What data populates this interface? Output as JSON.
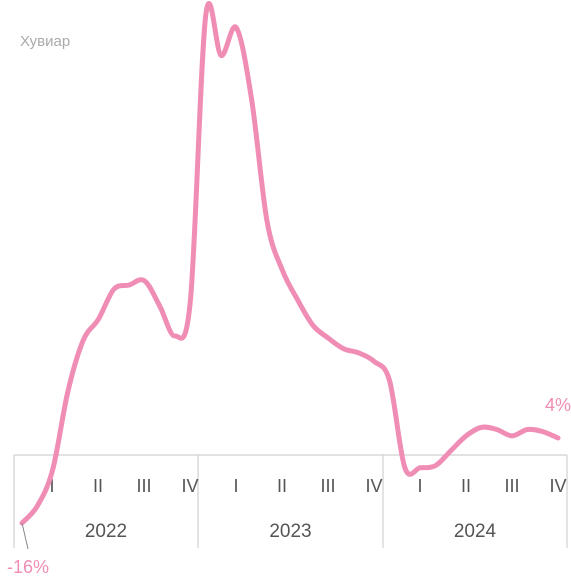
{
  "chart_data": {
    "type": "line",
    "y_label": "Хувиар",
    "series": [
      {
        "color": "#f08db5",
        "values": [
          -16,
          -12,
          -3.5,
          15,
          27,
          32,
          39,
          40,
          41,
          35,
          28,
          36.5,
          103.5,
          94,
          100.5,
          83.5,
          55,
          43.5,
          36.5,
          30.5,
          27.5,
          25,
          24,
          22,
          17.5,
          -3,
          -3,
          -2.5,
          1,
          4.5,
          6.5,
          6,
          4.5,
          6,
          5.5,
          4
        ],
        "value_labels": [
          "-16%",
          null,
          null,
          null,
          null,
          null,
          null,
          null,
          null,
          null,
          null,
          null,
          null,
          null,
          null,
          null,
          null,
          null,
          null,
          null,
          null,
          null,
          null,
          null,
          null,
          null,
          null,
          null,
          null,
          null,
          null,
          null,
          null,
          null,
          null,
          "4%"
        ]
      }
    ],
    "quarters": [
      "I",
      "II",
      "III",
      "IV",
      "I",
      "II",
      "III",
      "IV",
      "I",
      "II",
      "III",
      "IV"
    ],
    "years": [
      "2022",
      "2023",
      "2024"
    ],
    "ylim": [
      -20,
      105
    ]
  }
}
